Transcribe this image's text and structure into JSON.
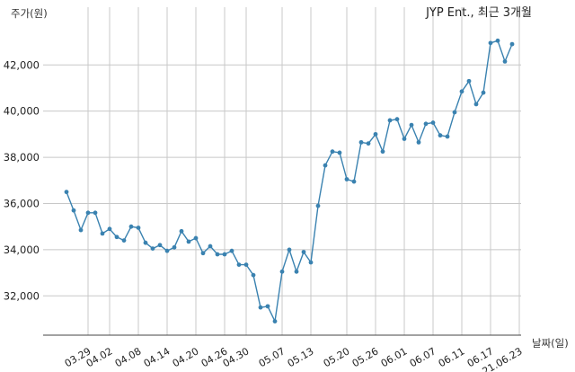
{
  "chart_data": {
    "type": "line",
    "title": "JYP Ent., 최근 3개월",
    "xlabel": "날짜(일)",
    "ylabel": "주가(원)",
    "ylim": [
      30300,
      44500
    ],
    "yticks": [
      32000,
      34000,
      36000,
      38000,
      40000,
      42000
    ],
    "ytick_labels": [
      "32,000",
      "34,000",
      "36,000",
      "38,000",
      "40,000",
      "42,000"
    ],
    "xtick_labels": [
      "03.29",
      "04.02",
      "04.08",
      "04.14",
      "04.20",
      "04.26",
      "04.30",
      "05.07",
      "05.13",
      "05.20",
      "05.26",
      "06.01",
      "06.07",
      "06.11",
      "06.17",
      "21.06.23"
    ],
    "xtick_index": [
      3,
      6,
      10,
      14,
      18,
      22,
      25,
      30,
      34,
      39,
      43,
      47,
      51,
      55,
      59,
      63
    ],
    "grid": true,
    "series": [
      {
        "color": "#3a82b0",
        "values": [
          36500,
          35700,
          34850,
          35600,
          35600,
          34700,
          34900,
          34550,
          34400,
          35000,
          34950,
          34300,
          34050,
          34200,
          33950,
          34100,
          34800,
          34350,
          34500,
          33850,
          34150,
          33800,
          33800,
          33950,
          33350,
          33350,
          32900,
          31500,
          31550,
          30900,
          33050,
          34000,
          33050,
          33900,
          33450,
          35900,
          37650,
          38250,
          38200,
          37050,
          36950,
          38650,
          38600,
          39000,
          38250,
          39600,
          39650,
          38800,
          39400,
          38650,
          39450,
          39500,
          38950,
          38900,
          39950,
          40850,
          41300,
          40300,
          40800,
          42950,
          43050,
          42150,
          42900
        ]
      }
    ]
  }
}
